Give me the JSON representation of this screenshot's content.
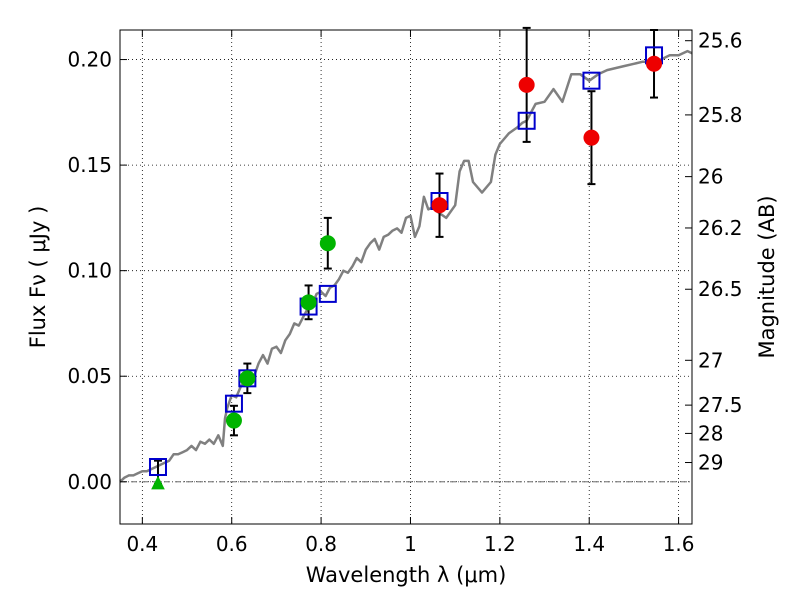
{
  "chart_data": {
    "type": "scatter",
    "xlabel": "Wavelength  λ (μm)",
    "ylabel": "Flux  Fν  ( μJy )",
    "ylabel_right": "Magnitude (AB)",
    "xlim": [
      0.35,
      1.63
    ],
    "ylim": [
      -0.02,
      0.214
    ],
    "grid": true,
    "x_ticks": [
      {
        "v": 0.4,
        "label": "0.4"
      },
      {
        "v": 0.6,
        "label": "0.6"
      },
      {
        "v": 0.8,
        "label": "0.8"
      },
      {
        "v": 1.0,
        "label": "1"
      },
      {
        "v": 1.2,
        "label": "1.2"
      },
      {
        "v": 1.4,
        "label": "1.4"
      },
      {
        "v": 1.6,
        "label": "1.6"
      }
    ],
    "y_ticks": [
      {
        "v": 0.0,
        "label": "0.00"
      },
      {
        "v": 0.05,
        "label": "0.05"
      },
      {
        "v": 0.1,
        "label": "0.10"
      },
      {
        "v": 0.15,
        "label": "0.15"
      },
      {
        "v": 0.2,
        "label": "0.20"
      }
    ],
    "mag_ticks": [
      {
        "v": 25.6,
        "label": "25.6"
      },
      {
        "v": 25.8,
        "label": "25.8"
      },
      {
        "v": 26.0,
        "label": "26"
      },
      {
        "v": 26.2,
        "label": "26.2"
      },
      {
        "v": 26.5,
        "label": "26.5"
      },
      {
        "v": 27.0,
        "label": "27"
      },
      {
        "v": 27.5,
        "label": "27.5"
      },
      {
        "v": 28.0,
        "label": "28"
      },
      {
        "v": 29.0,
        "label": "29"
      }
    ],
    "colors": {
      "model": "#808080",
      "model_points": "#0000cc",
      "green": "#00b400",
      "red": "#ee0000",
      "errorbar": "#000000"
    },
    "series": [
      {
        "kind": "line",
        "x": [
          0.35,
          0.36,
          0.37,
          0.38,
          0.39,
          0.4,
          0.41,
          0.42,
          0.43,
          0.44,
          0.45,
          0.46,
          0.47,
          0.48,
          0.49,
          0.5,
          0.51,
          0.52,
          0.53,
          0.54,
          0.55,
          0.56,
          0.57,
          0.58,
          0.585,
          0.59,
          0.6,
          0.61,
          0.62,
          0.63,
          0.64,
          0.65,
          0.66,
          0.67,
          0.68,
          0.69,
          0.7,
          0.71,
          0.72,
          0.73,
          0.74,
          0.75,
          0.76,
          0.77,
          0.78,
          0.79,
          0.8,
          0.81,
          0.82,
          0.83,
          0.84,
          0.85,
          0.86,
          0.87,
          0.88,
          0.89,
          0.9,
          0.91,
          0.92,
          0.93,
          0.94,
          0.95,
          0.96,
          0.97,
          0.98,
          0.99,
          1.0,
          1.01,
          1.02,
          1.03,
          1.04,
          1.05,
          1.06,
          1.08,
          1.1,
          1.11,
          1.12,
          1.13,
          1.14,
          1.16,
          1.18,
          1.19,
          1.2,
          1.22,
          1.24,
          1.25,
          1.26,
          1.27,
          1.28,
          1.3,
          1.32,
          1.34,
          1.36,
          1.38,
          1.4,
          1.42,
          1.44,
          1.46,
          1.48,
          1.5,
          1.52,
          1.54,
          1.56,
          1.58,
          1.6,
          1.62,
          1.63
        ],
        "y": [
          0.0,
          0.002,
          0.003,
          0.003,
          0.004,
          0.005,
          0.005,
          0.006,
          0.007,
          0.008,
          0.009,
          0.01,
          0.013,
          0.013,
          0.014,
          0.015,
          0.017,
          0.015,
          0.019,
          0.018,
          0.02,
          0.018,
          0.022,
          0.017,
          0.03,
          0.035,
          0.041,
          0.04,
          0.045,
          0.048,
          0.051,
          0.05,
          0.056,
          0.06,
          0.056,
          0.063,
          0.064,
          0.061,
          0.067,
          0.07,
          0.075,
          0.074,
          0.078,
          0.082,
          0.084,
          0.089,
          0.09,
          0.088,
          0.092,
          0.093,
          0.096,
          0.1,
          0.099,
          0.102,
          0.106,
          0.104,
          0.11,
          0.113,
          0.115,
          0.11,
          0.116,
          0.117,
          0.119,
          0.12,
          0.118,
          0.125,
          0.126,
          0.116,
          0.121,
          0.135,
          0.129,
          0.13,
          0.128,
          0.125,
          0.131,
          0.147,
          0.152,
          0.152,
          0.142,
          0.137,
          0.142,
          0.155,
          0.16,
          0.165,
          0.168,
          0.17,
          0.171,
          0.175,
          0.179,
          0.18,
          0.186,
          0.18,
          0.193,
          0.193,
          0.19,
          0.193,
          0.195,
          0.196,
          0.197,
          0.198,
          0.199,
          0.199,
          0.2,
          0.202,
          0.202,
          0.204,
          0.203
        ]
      },
      {
        "kind": "open-square",
        "x": [
          0.435,
          0.605,
          0.635,
          0.772,
          0.815,
          1.065,
          1.26,
          1.405,
          1.545
        ],
        "y": [
          0.007,
          0.037,
          0.049,
          0.083,
          0.089,
          0.133,
          0.171,
          0.19,
          0.202
        ]
      },
      {
        "kind": "green-circle",
        "x": [
          0.605,
          0.635,
          0.772,
          0.815
        ],
        "y": [
          0.029,
          0.049,
          0.085,
          0.113
        ],
        "err": [
          0.007,
          0.007,
          0.008,
          0.012
        ]
      },
      {
        "kind": "green-triangle",
        "x": [
          0.435
        ],
        "y": [
          -0.001
        ],
        "err_up": [
          0.011
        ]
      },
      {
        "kind": "red-circle",
        "x": [
          1.065,
          1.26,
          1.405,
          1.545
        ],
        "y": [
          0.131,
          0.188,
          0.163,
          0.198
        ],
        "err": [
          0.015,
          0.027,
          0.022,
          0.016
        ]
      }
    ]
  }
}
